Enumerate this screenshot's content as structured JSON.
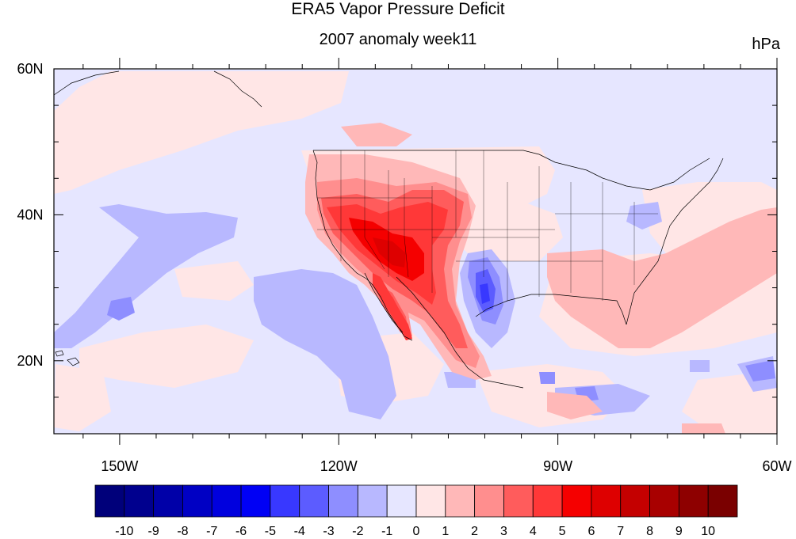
{
  "title": "ERA5 Vapor Pressure Deficit",
  "subtitle": "2007 anomaly week11",
  "units": "hPa",
  "lat_axis": {
    "ticks": [
      {
        "value": 60,
        "label": "60N"
      },
      {
        "value": 40,
        "label": "40N"
      },
      {
        "value": 20,
        "label": "20N"
      }
    ],
    "range": [
      10,
      60
    ]
  },
  "lon_axis": {
    "ticks": [
      {
        "value": -150,
        "label": "150W"
      },
      {
        "value": -120,
        "label": "120W"
      },
      {
        "value": -90,
        "label": "90W"
      },
      {
        "value": -60,
        "label": "60W"
      }
    ],
    "range": [
      -159,
      -60
    ]
  },
  "colorbar": {
    "labels": [
      "-10",
      "-9",
      "-8",
      "-7",
      "-6",
      "-5",
      "-4",
      "-3",
      "-2",
      "-1",
      "0",
      "1",
      "2",
      "3",
      "4",
      "5",
      "6",
      "7",
      "8",
      "9",
      "10"
    ],
    "colors": [
      "#00007a",
      "#00008e",
      "#0000a8",
      "#0000c4",
      "#0000de",
      "#0000f5",
      "#3838ff",
      "#5c5cff",
      "#8e8eff",
      "#b8b8ff",
      "#e6e6ff",
      "#ffe6e6",
      "#ffb8b8",
      "#ff8e8e",
      "#ff5c5c",
      "#ff3838",
      "#f50000",
      "#de0000",
      "#c40000",
      "#a80000",
      "#8e0000",
      "#7a0000"
    ]
  }
}
